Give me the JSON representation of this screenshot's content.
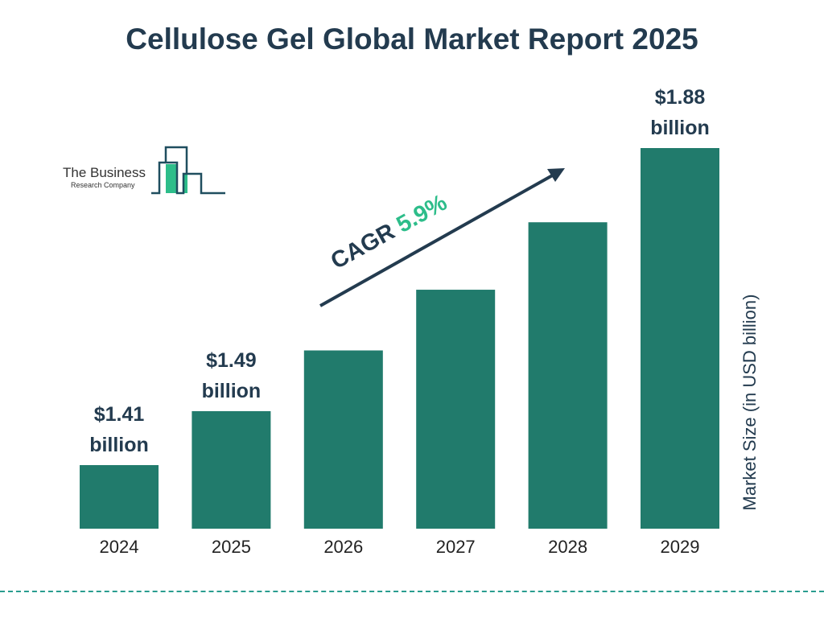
{
  "logo": {
    "line1": "The Business",
    "line2": "Research Company"
  },
  "chart_data": {
    "type": "bar",
    "title": "Cellulose Gel Global Market Report 2025",
    "ylabel": "Market Size (in USD billion)",
    "xlabel": "",
    "categories": [
      "2024",
      "2025",
      "2026",
      "2027",
      "2028",
      "2029"
    ],
    "values": [
      1.41,
      1.49,
      1.58,
      1.67,
      1.77,
      1.88
    ],
    "data_labels": [
      {
        "index": 0,
        "value": "$1.41",
        "unit": "billion"
      },
      {
        "index": 1,
        "value": "$1.49",
        "unit": "billion"
      },
      {
        "index": 5,
        "value": "$1.88",
        "unit": "billion"
      }
    ],
    "annotation": {
      "label": "CAGR",
      "value": "5.9%"
    },
    "grid": false,
    "colors": {
      "bar": "#217b6c",
      "text": "#233b4f",
      "cagr": "#2dbd8a",
      "divider": "#2a9d8f"
    }
  }
}
